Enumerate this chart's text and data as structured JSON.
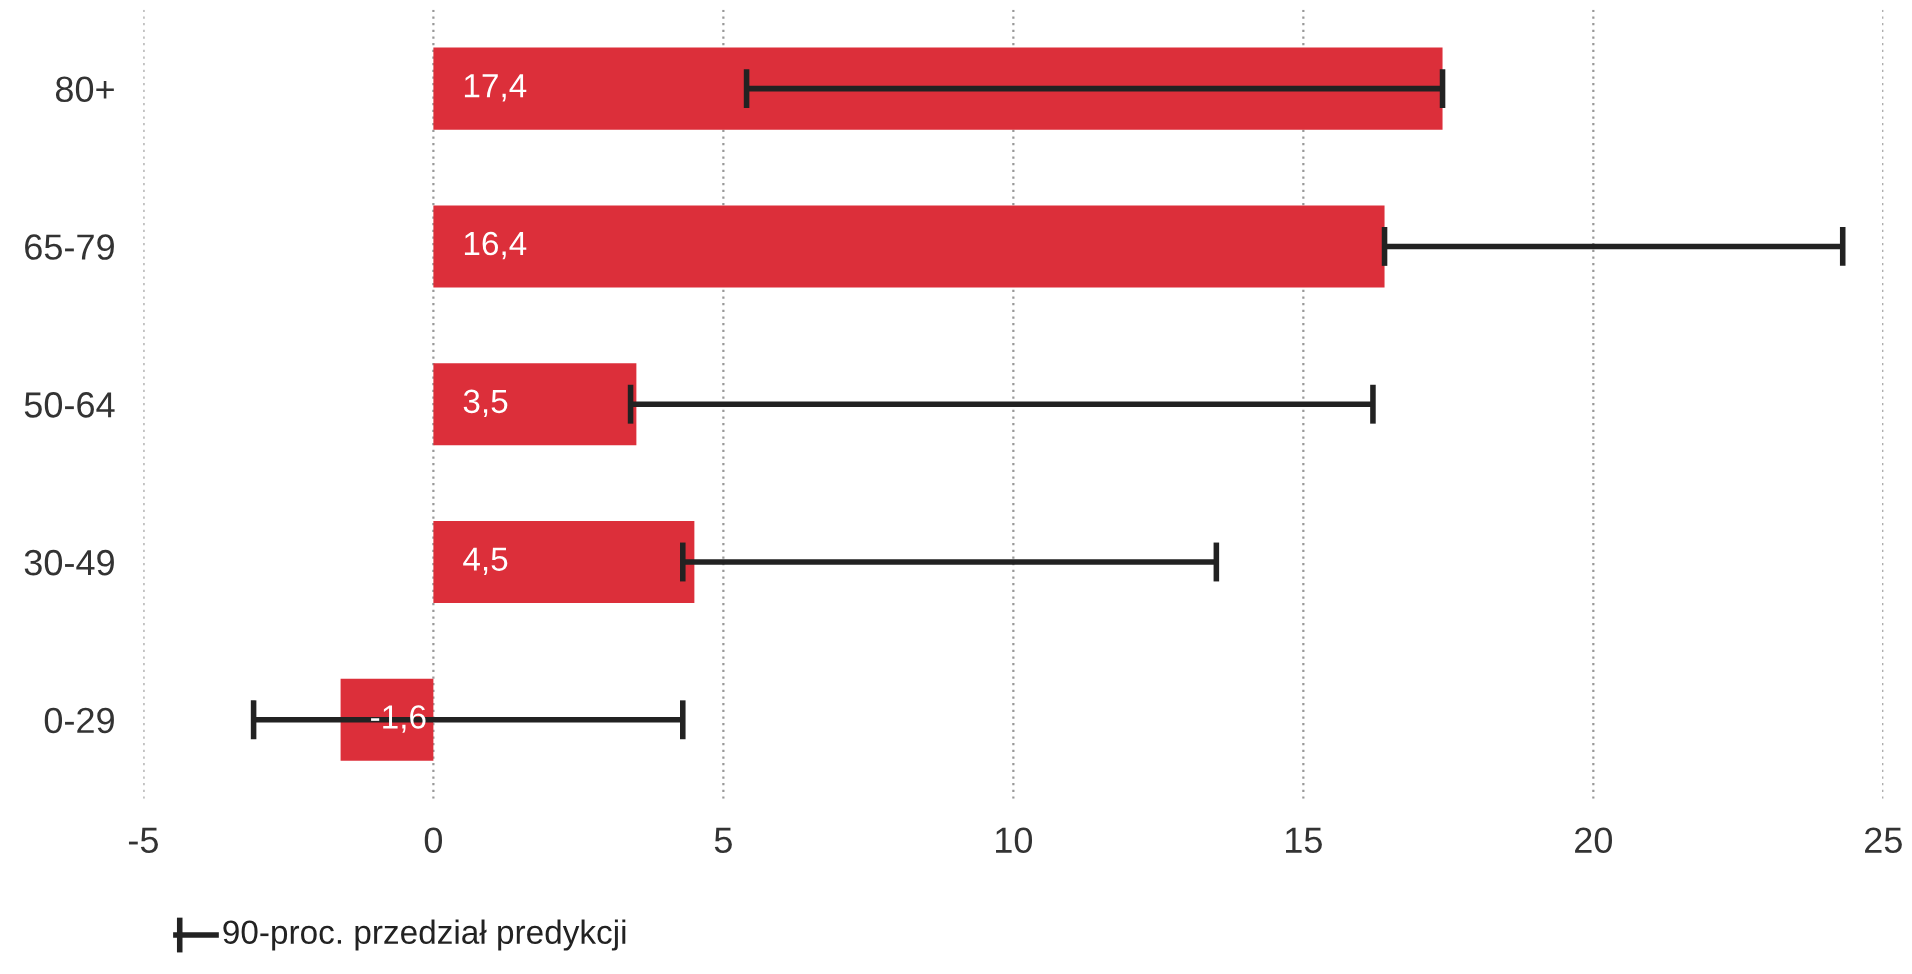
{
  "chart_data": {
    "type": "bar",
    "orientation": "horizontal",
    "categories": [
      "80+",
      "65-79",
      "50-64",
      "30-49",
      "0-29"
    ],
    "values": [
      17.4,
      16.4,
      3.5,
      4.5,
      -1.6
    ],
    "color": "#dc2f3a",
    "value_labels": [
      "17,4",
      "16,4",
      "3,5",
      "4,5",
      "-1,6"
    ],
    "errors": [
      [
        5.4,
        17.4
      ],
      [
        16.4,
        24.3
      ],
      [
        3.4,
        16.2
      ],
      [
        4.3,
        13.5
      ],
      [
        -3.1,
        4.3
      ]
    ],
    "xlim": [
      -5,
      25
    ],
    "xticks": [
      -5,
      0,
      5,
      10,
      15,
      20,
      25
    ],
    "grid": "x",
    "annotations": [
      "90-proc. przedział predykcji"
    ]
  }
}
